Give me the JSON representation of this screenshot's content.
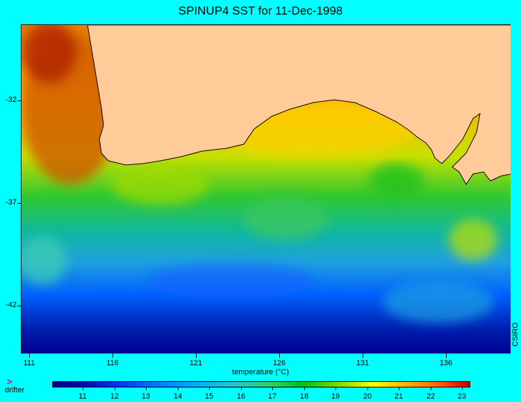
{
  "map": {
    "title": "SPINUP4 SST for 11-Dec-1998",
    "lat_labels": [
      "-32",
      "-37",
      "-42"
    ],
    "lon_labels": [
      "111",
      "116",
      "121",
      "126",
      "131",
      "136"
    ],
    "colorbar_title": "temperature (°C)",
    "colorbar_labels": [
      "11",
      "12",
      "13",
      "14",
      "15",
      "16",
      "17",
      "18",
      "19",
      "20",
      "21",
      "22",
      "23"
    ],
    "credit": "CSIRO",
    "legend": {
      "symbol": ">",
      "label": "drifter"
    }
  },
  "colors": {
    "background": "#00ffff",
    "land": "#ffcc99",
    "warm": "#ff8000",
    "cool": "#00c040",
    "cold": "#0040ff",
    "deep": "#000080"
  }
}
